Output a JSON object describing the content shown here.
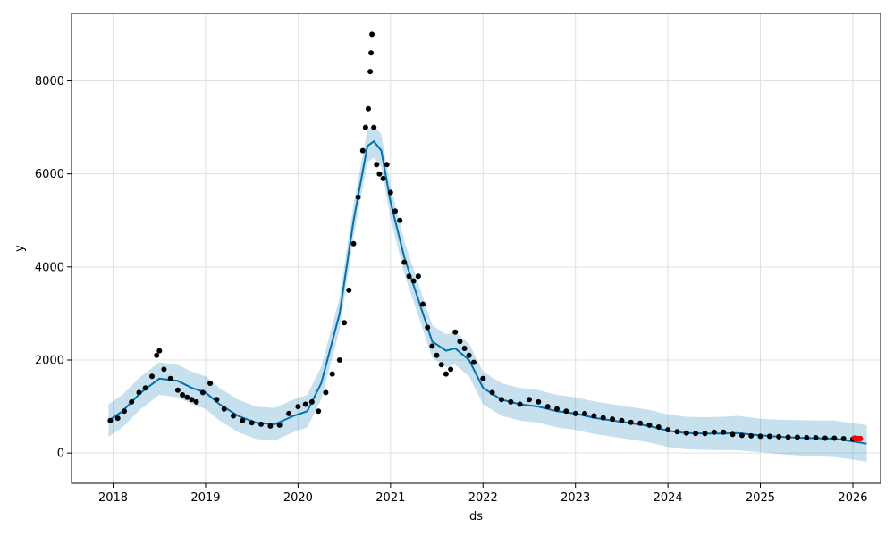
{
  "chart_data": {
    "type": "line",
    "title": "",
    "xlabel": "ds",
    "ylabel": "y",
    "xlim": [
      2017.55,
      2026.3
    ],
    "ylim": [
      -650,
      9450
    ],
    "grid": true,
    "x_ticks": [
      2018,
      2019,
      2020,
      2021,
      2022,
      2023,
      2024,
      2025,
      2026
    ],
    "x_tick_labels": [
      "2018",
      "2019",
      "2020",
      "2021",
      "2022",
      "2023",
      "2024",
      "2025",
      "2026"
    ],
    "y_ticks": [
      0,
      2000,
      4000,
      6000,
      8000
    ],
    "y_tick_labels": [
      "0",
      "2000",
      "4000",
      "6000",
      "8000"
    ],
    "colors": {
      "forecast_line": "#0072B2",
      "uncertainty_band": "#0072B2",
      "observed_points": "#000000",
      "highlight_points": "#ff0000",
      "grid": "#e0e0e0"
    },
    "forecast": {
      "x": [
        2017.95,
        2018.1,
        2018.3,
        2018.5,
        2018.7,
        2018.85,
        2019.0,
        2019.15,
        2019.35,
        2019.55,
        2019.75,
        2019.95,
        2020.1,
        2020.25,
        2020.45,
        2020.6,
        2020.75,
        2020.82,
        2020.9,
        2021.0,
        2021.15,
        2021.3,
        2021.45,
        2021.6,
        2021.7,
        2021.85,
        2022.0,
        2022.2,
        2022.4,
        2022.6,
        2022.8,
        2023.0,
        2023.2,
        2023.4,
        2023.6,
        2023.8,
        2024.0,
        2024.2,
        2024.4,
        2024.6,
        2024.75,
        2025.0,
        2025.2,
        2025.4,
        2025.6,
        2025.8,
        2026.0,
        2026.15
      ],
      "yhat": [
        700,
        900,
        1300,
        1600,
        1550,
        1400,
        1300,
        1050,
        800,
        650,
        620,
        800,
        900,
        1500,
        3000,
        5000,
        6600,
        6700,
        6500,
        5400,
        4200,
        3300,
        2400,
        2200,
        2250,
        2000,
        1400,
        1150,
        1050,
        1000,
        900,
        850,
        760,
        700,
        640,
        580,
        480,
        430,
        420,
        420,
        430,
        380,
        350,
        330,
        320,
        310,
        250,
        200
      ],
      "lower": [
        350,
        550,
        950,
        1250,
        1200,
        1050,
        950,
        700,
        450,
        300,
        270,
        450,
        550,
        1150,
        2650,
        4650,
        6250,
        6350,
        6150,
        5050,
        3850,
        2950,
        2050,
        1850,
        1900,
        1650,
        1050,
        800,
        700,
        650,
        550,
        500,
        410,
        350,
        290,
        230,
        130,
        80,
        70,
        60,
        60,
        20,
        -20,
        -50,
        -70,
        -90,
        -140,
        -190
      ],
      "upper": [
        1050,
        1250,
        1650,
        1950,
        1900,
        1750,
        1650,
        1400,
        1150,
        1000,
        970,
        1150,
        1250,
        1850,
        3350,
        5350,
        6950,
        7050,
        6850,
        5750,
        4550,
        3650,
        2750,
        2550,
        2600,
        2350,
        1750,
        1500,
        1400,
        1350,
        1250,
        1200,
        1110,
        1050,
        990,
        930,
        830,
        780,
        770,
        780,
        800,
        740,
        720,
        710,
        700,
        700,
        640,
        600
      ]
    },
    "observed": {
      "x": [
        2017.97,
        2018.05,
        2018.12,
        2018.2,
        2018.28,
        2018.35,
        2018.42,
        2018.47,
        2018.5,
        2018.55,
        2018.62,
        2018.7,
        2018.75,
        2018.8,
        2018.85,
        2018.9,
        2018.97,
        2019.05,
        2019.12,
        2019.2,
        2019.3,
        2019.4,
        2019.5,
        2019.6,
        2019.7,
        2019.8,
        2019.9,
        2020.0,
        2020.08,
        2020.15,
        2020.22,
        2020.3,
        2020.37,
        2020.45,
        2020.5,
        2020.55,
        2020.6,
        2020.65,
        2020.7,
        2020.73,
        2020.76,
        2020.78,
        2020.79,
        2020.8,
        2020.82,
        2020.85,
        2020.88,
        2020.92,
        2020.96,
        2021.0,
        2021.05,
        2021.1,
        2021.15,
        2021.2,
        2021.25,
        2021.3,
        2021.35,
        2021.4,
        2021.45,
        2021.5,
        2021.55,
        2021.6,
        2021.65,
        2021.7,
        2021.75,
        2021.8,
        2021.85,
        2021.9,
        2022.0,
        2022.1,
        2022.2,
        2022.3,
        2022.4,
        2022.5,
        2022.6,
        2022.7,
        2022.8,
        2022.9,
        2023.0,
        2023.1,
        2023.2,
        2023.3,
        2023.4,
        2023.5,
        2023.6,
        2023.7,
        2023.8,
        2023.9,
        2024.0,
        2024.1,
        2024.2,
        2024.3,
        2024.4,
        2024.5,
        2024.6,
        2024.7,
        2024.8,
        2024.9,
        2025.0,
        2025.1,
        2025.2,
        2025.3,
        2025.4,
        2025.5,
        2025.6,
        2025.7,
        2025.8,
        2025.9,
        2026.0
      ],
      "y": [
        700,
        750,
        900,
        1100,
        1300,
        1400,
        1650,
        2100,
        2200,
        1800,
        1600,
        1350,
        1250,
        1200,
        1150,
        1100,
        1300,
        1500,
        1150,
        950,
        800,
        700,
        650,
        620,
        580,
        600,
        850,
        1000,
        1050,
        1100,
        900,
        1300,
        1700,
        2000,
        2800,
        3500,
        4500,
        5500,
        6500,
        7000,
        7400,
        8200,
        8600,
        9000,
        7000,
        6200,
        6000,
        5900,
        6200,
        5600,
        5200,
        5000,
        4100,
        3800,
        3700,
        3800,
        3200,
        2700,
        2300,
        2100,
        1900,
        1700,
        1800,
        2600,
        2400,
        2250,
        2100,
        1950,
        1600,
        1300,
        1150,
        1100,
        1050,
        1150,
        1100,
        1000,
        950,
        900,
        850,
        850,
        800,
        760,
        730,
        700,
        660,
        640,
        600,
        560,
        500,
        460,
        430,
        420,
        420,
        450,
        450,
        400,
        380,
        370,
        360,
        360,
        350,
        340,
        340,
        330,
        330,
        320,
        320,
        310,
        300
      ]
    },
    "highlight": {
      "x": [
        2026.02,
        2026.05,
        2026.08
      ],
      "y": [
        320,
        310,
        310
      ]
    }
  }
}
